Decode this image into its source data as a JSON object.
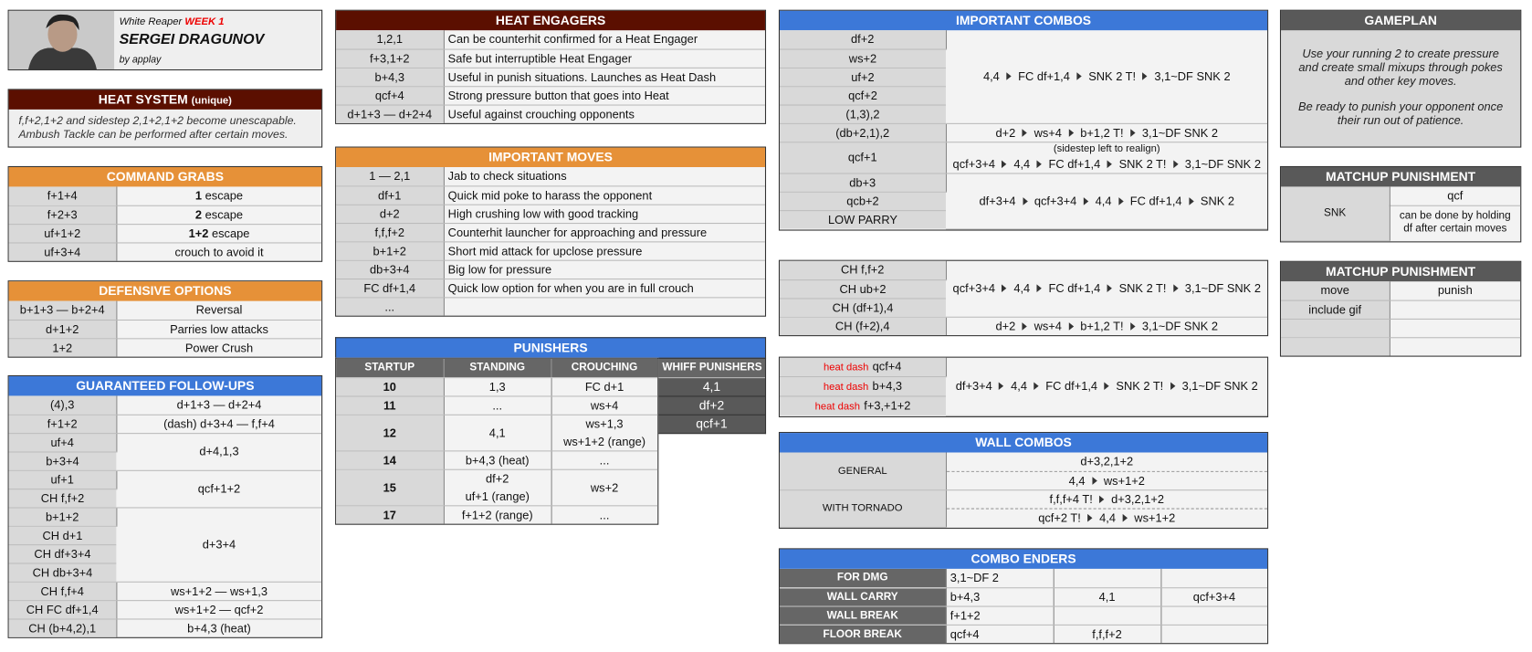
{
  "header": {
    "subtitle": "White Reaper",
    "week": "WEEK 1",
    "name": "SERGEI DRAGUNOV",
    "author": "by applay"
  },
  "heat_system": {
    "title": "HEAT SYSTEM",
    "tag": "(unique)",
    "lines": [
      "f,f+2,1+2 and sidestep 2,1+2,1+2 become unescapable.",
      "Ambush Tackle can be performed after certain moves."
    ]
  },
  "command_grabs": {
    "title": "COMMAND GRABS",
    "rows": [
      {
        "move": "f+1+4",
        "key": "1",
        "text": "escape"
      },
      {
        "move": "f+2+3",
        "key": "2",
        "text": "escape"
      },
      {
        "move": "uf+1+2",
        "key": "1+2",
        "text": "escape"
      },
      {
        "move": "uf+3+4",
        "text": "crouch to avoid it"
      }
    ]
  },
  "defensive_options": {
    "title": "DEFENSIVE OPTIONS",
    "rows": [
      [
        "b+1+3 — b+2+4",
        "Reversal"
      ],
      [
        "d+1+2",
        "Parries low attacks"
      ],
      [
        "1+2",
        "Power Crush"
      ]
    ]
  },
  "guaranteed_followups": {
    "title": "GUARANTEED FOLLOW-UPS",
    "groups": [
      {
        "starters": [
          "(4),3"
        ],
        "followup": "d+1+3 — d+2+4"
      },
      {
        "starters": [
          "f+1+2"
        ],
        "followup": "(dash) d+3+4 — f,f+4"
      },
      {
        "starters": [
          "uf+4",
          "b+3+4"
        ],
        "followup": "d+4,1,3"
      },
      {
        "starters": [
          "uf+1",
          "CH f,f+2"
        ],
        "followup": "qcf+1+2"
      },
      {
        "starters": [
          "b+1+2",
          "CH d+1",
          "CH df+3+4",
          "CH db+3+4"
        ],
        "followup": "d+3+4"
      },
      {
        "starters": [
          "CH f,f+4"
        ],
        "followup": "ws+1+2 — ws+1,3"
      },
      {
        "starters": [
          "CH FC df+1,4"
        ],
        "followup": "ws+1+2 — qcf+2"
      },
      {
        "starters": [
          "CH (b+4,2),1"
        ],
        "followup": "b+4,3 (heat)"
      }
    ]
  },
  "heat_engagers": {
    "title": "HEAT ENGAGERS",
    "rows": [
      [
        "1,2,1",
        "Can be counterhit confirmed for a Heat Engager"
      ],
      [
        "f+3,1+2",
        "Safe but interruptible Heat Engager"
      ],
      [
        "b+4,3",
        "Useful in punish situations. Launches as Heat Dash"
      ],
      [
        "qcf+4",
        "Strong pressure button that goes into Heat"
      ],
      [
        "d+1+3 — d+2+4",
        "Useful against crouching opponents"
      ]
    ]
  },
  "important_moves": {
    "title": "IMPORTANT MOVES",
    "rows": [
      [
        "1 — 2,1",
        "Jab to check situations"
      ],
      [
        "df+1",
        "Quick mid poke to harass the opponent"
      ],
      [
        "d+2",
        "High crushing low with good tracking"
      ],
      [
        "f,f,f+2",
        "Counterhit launcher for approaching and pressure"
      ],
      [
        "b+1+2",
        "Short mid attack for upclose pressure"
      ],
      [
        "db+3+4",
        "Big low for pressure"
      ],
      [
        "FC df+1,4",
        "Quick low option for when you are in full crouch"
      ],
      [
        "..."
      ]
    ]
  },
  "punishers": {
    "title": "PUNISHERS",
    "headers": [
      "STARTUP",
      "STANDING",
      "CROUCHING"
    ],
    "rows": [
      {
        "startup": 10,
        "standing": [
          "1,3"
        ],
        "crouching": [
          "FC d+1"
        ]
      },
      {
        "startup": 11,
        "standing": [
          "..."
        ],
        "crouching": [
          "ws+4"
        ]
      },
      {
        "startup": 12,
        "standing": [
          "4,1"
        ],
        "crouching": [
          "ws+1,3",
          "ws+1+2 (range)"
        ]
      },
      {
        "startup": 14,
        "standing": [
          "b+4,3 (heat)"
        ],
        "crouching": [
          "..."
        ]
      },
      {
        "startup": 15,
        "standing": [
          "df+2",
          "uf+1 (range)"
        ],
        "crouching": [
          "ws+2"
        ]
      },
      {
        "startup": 17,
        "standing": [
          "f+1+2 (range)"
        ],
        "crouching": [
          "..."
        ]
      }
    ],
    "whiff": {
      "header": "WHIFF PUNISHERS",
      "moves": [
        "4,1",
        "df+2",
        "qcf+1"
      ]
    }
  },
  "important_combos": {
    "title": "IMPORTANT COMBOS",
    "groups": [
      {
        "starters": [
          "df+2",
          "ws+2",
          "uf+2",
          "qcf+2",
          "(1,3),2"
        ],
        "combo": [
          "4,4",
          "FC df+1,4",
          "SNK 2 T!",
          "3,1~DF SNK 2"
        ]
      },
      {
        "starters": [
          "(db+2,1),2"
        ],
        "combo": [
          "d+2",
          "ws+4",
          "b+1,2 T!",
          "3,1~DF SNK 2"
        ]
      },
      {
        "starters": [
          "qcf+1"
        ],
        "note": "(sidestep left to realign)",
        "combo": [
          "qcf+3+4",
          "4,4",
          "FC df+1,4",
          "SNK 2 T!",
          "3,1~DF SNK 2"
        ]
      },
      {
        "starters": [
          "db+3",
          "qcb+2",
          "LOW PARRY"
        ],
        "combo": [
          "df+3+4",
          "qcf+3+4",
          "4,4",
          "FC df+1,4",
          "SNK 2"
        ]
      }
    ]
  },
  "counterhit_combos": {
    "groups": [
      {
        "starters": [
          "CH f,f+2",
          "CH ub+2",
          "CH (df+1),4"
        ],
        "combo": [
          "qcf+3+4",
          "4,4",
          "FC df+1,4",
          "SNK 2 T!",
          "3,1~DF SNK 2"
        ]
      },
      {
        "starters": [
          "CH (f+2),4"
        ],
        "combo": [
          "d+2",
          "ws+4",
          "b+1,2 T!",
          "3,1~DF SNK 2"
        ]
      }
    ]
  },
  "heat_dash_combos": {
    "starters": [
      {
        "tag": "heat dash",
        "move": "qcf+4"
      },
      {
        "tag": "heat dash",
        "move": "b+4,3"
      },
      {
        "tag": "heat dash",
        "move": "f+3,+1+2"
      }
    ],
    "combo": [
      "df+3+4",
      "4,4",
      "FC df+1,4",
      "SNK 2 T!",
      "3,1~DF SNK 2"
    ]
  },
  "wall_combos": {
    "title": "WALL COMBOS",
    "groups": [
      {
        "label": "GENERAL",
        "combos": [
          [
            "d+3,2,1+2"
          ],
          [
            "4,4",
            "ws+1+2"
          ]
        ]
      },
      {
        "label": "WITH TORNADO",
        "combos": [
          [
            "f,f,f+4 T!",
            "d+3,2,1+2"
          ],
          [
            "qcf+2 T!",
            "4,4",
            "ws+1+2"
          ]
        ]
      }
    ]
  },
  "combo_enders": {
    "title": "COMBO ENDERS",
    "rows": [
      {
        "label": "FOR DMG",
        "moves": [
          "3,1~DF 2"
        ]
      },
      {
        "label": "WALL CARRY",
        "moves": [
          "b+4,3",
          "4,1",
          "qcf+3+4"
        ]
      },
      {
        "label": "WALL BREAK",
        "moves": [
          "f+1+2"
        ]
      },
      {
        "label": "FLOOR BREAK",
        "moves": [
          "qcf+4",
          "f,f,f+2"
        ]
      }
    ]
  },
  "gameplan": {
    "title": "GAMEPLAN",
    "paragraphs": [
      "Use your running 2 to create pressure and create small mixups through pokes and other key moves.",
      "Be ready to punish your opponent once their run out of patience."
    ]
  },
  "matchup_punishment_1": {
    "title": "MATCHUP PUNISHMENT",
    "label": "SNK",
    "move": "qcf",
    "note": "can be done by holding df after certain moves"
  },
  "matchup_punishment_2": {
    "title": "MATCHUP PUNISHMENT",
    "headers": [
      "move",
      "punish"
    ],
    "rows": [
      [
        "include gif"
      ]
    ]
  }
}
